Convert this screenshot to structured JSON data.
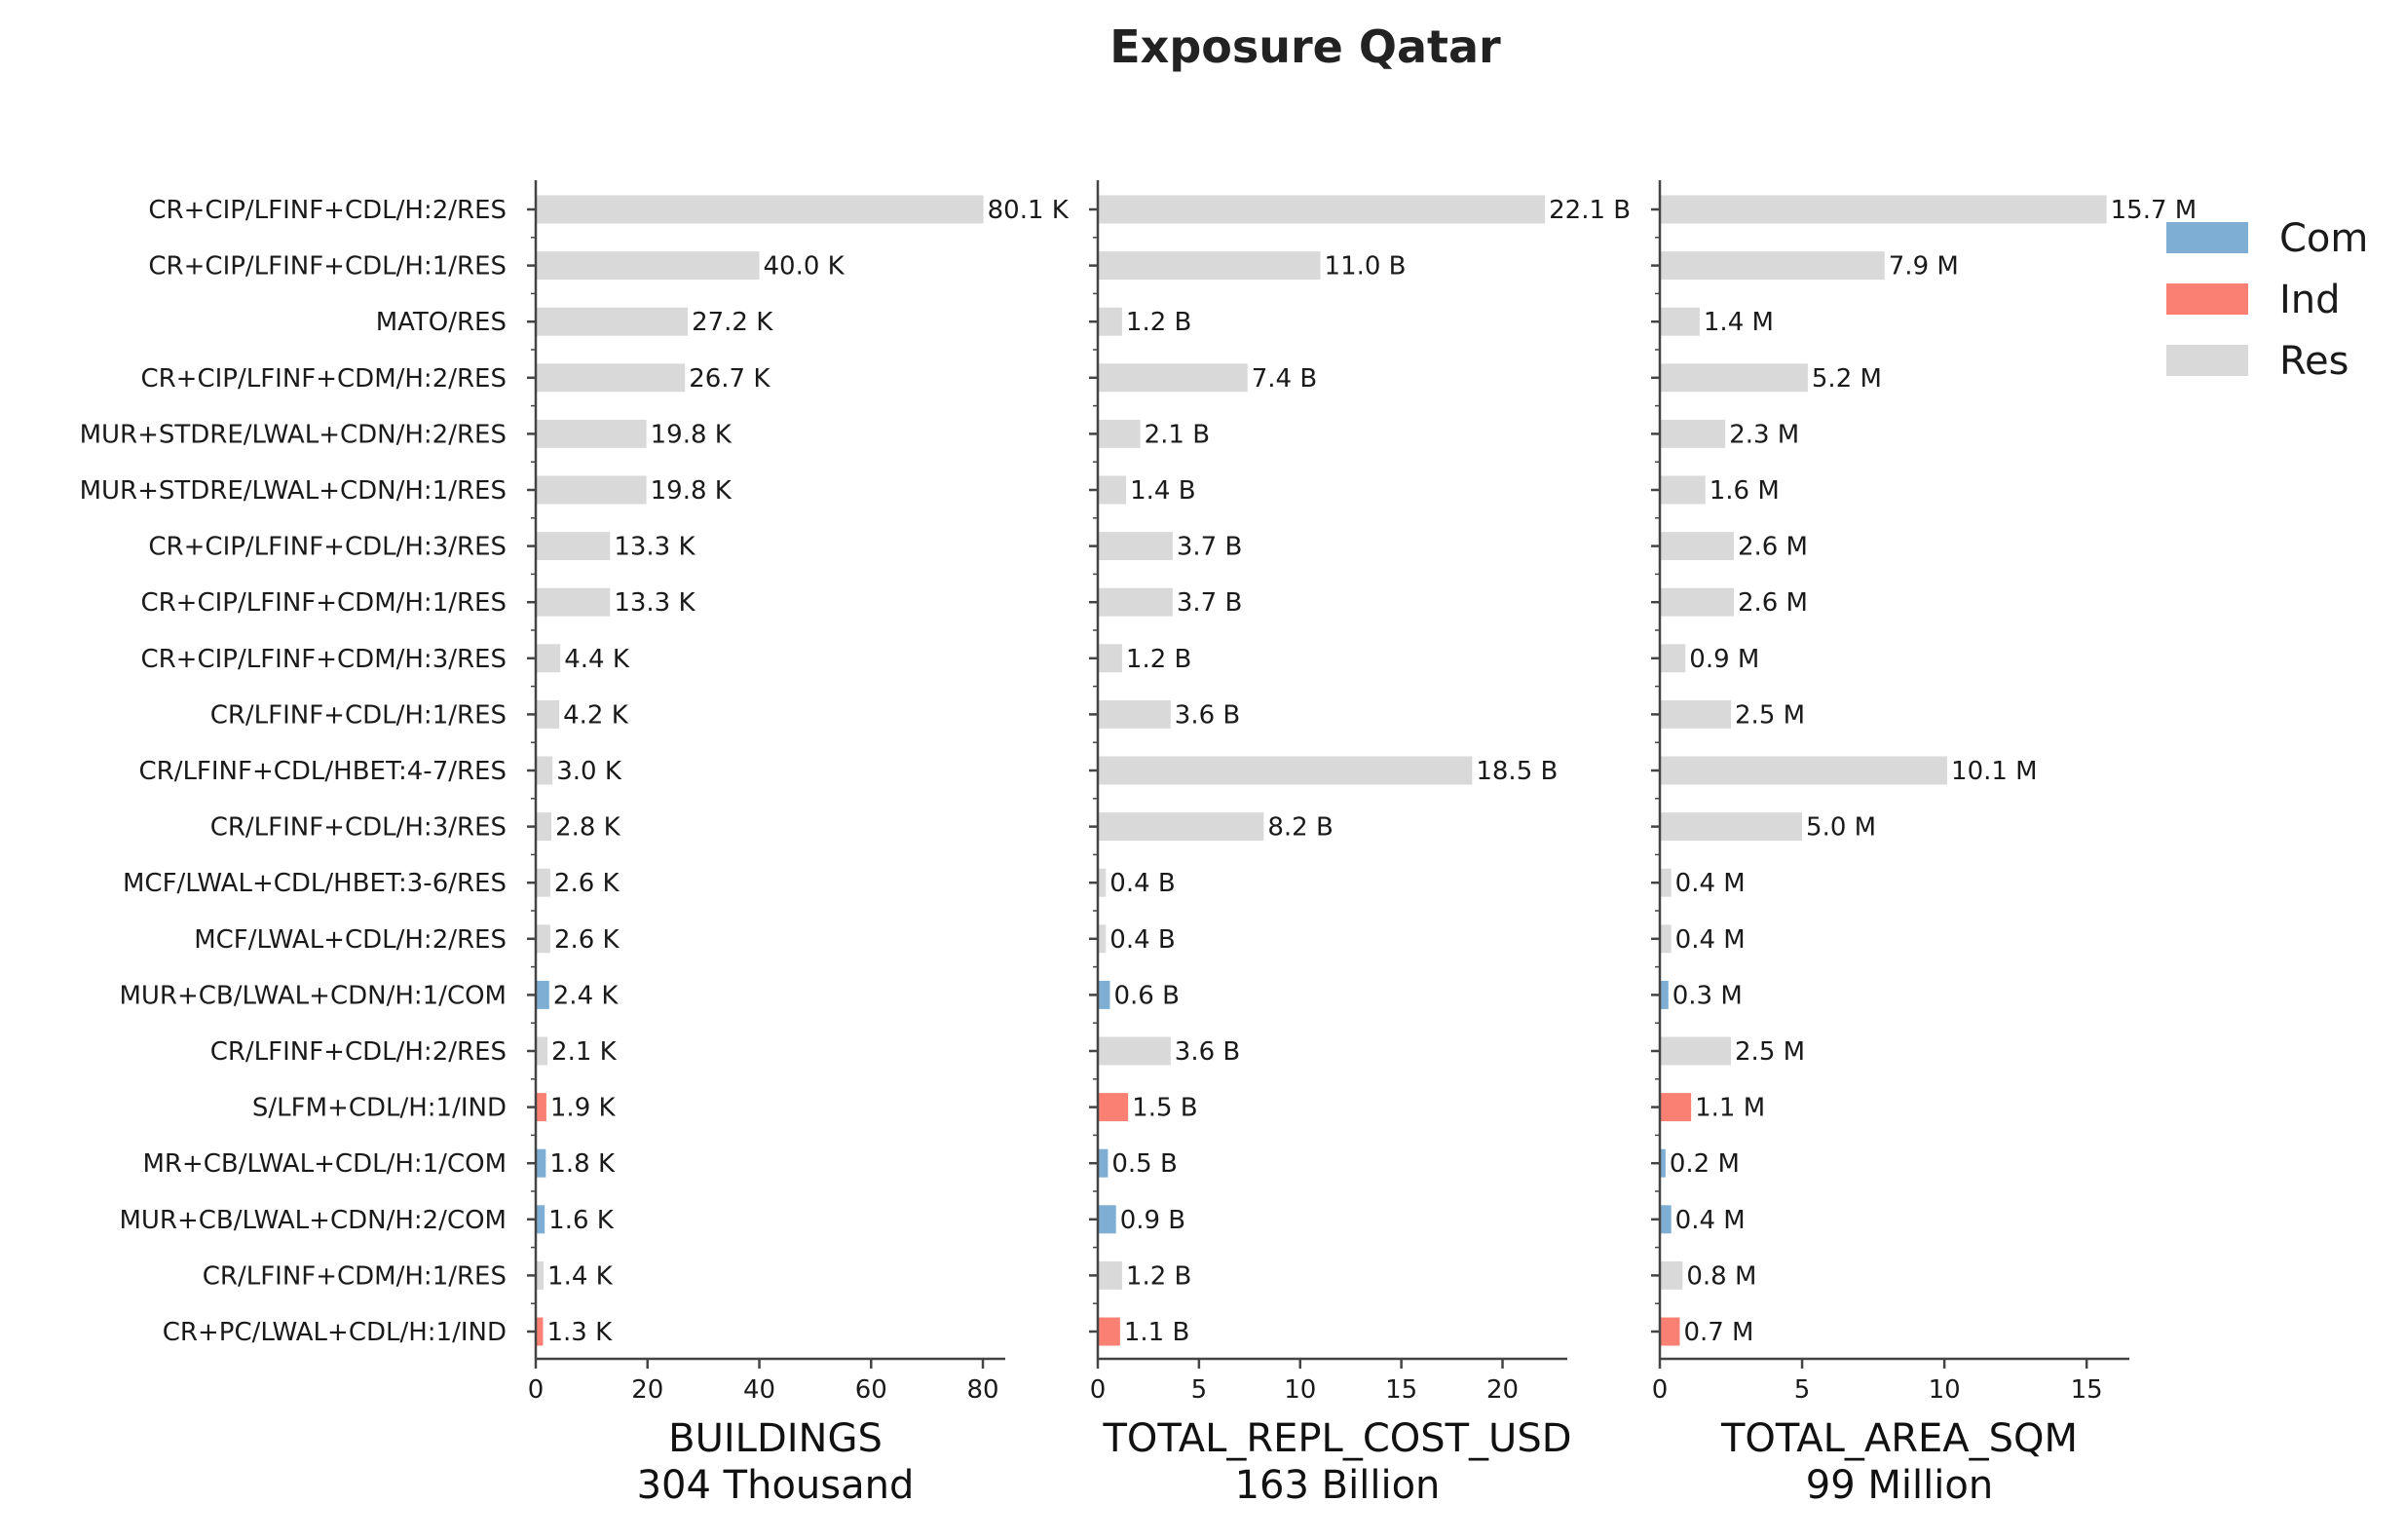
{
  "chart_data": {
    "type": "bar",
    "orientation": "horizontal",
    "title": "Exposure Qatar",
    "categories": [
      "CR+CIP/LFINF+CDL/H:2/RES",
      "CR+CIP/LFINF+CDL/H:1/RES",
      "MATO/RES",
      "CR+CIP/LFINF+CDM/H:2/RES",
      "MUR+STDRE/LWAL+CDN/H:2/RES",
      "MUR+STDRE/LWAL+CDN/H:1/RES",
      "CR+CIP/LFINF+CDL/H:3/RES",
      "CR+CIP/LFINF+CDM/H:1/RES",
      "CR+CIP/LFINF+CDM/H:3/RES",
      "CR/LFINF+CDL/H:1/RES",
      "CR/LFINF+CDL/HBET:4-7/RES",
      "CR/LFINF+CDL/H:3/RES",
      "MCF/LWAL+CDL/HBET:3-6/RES",
      "MCF/LWAL+CDL/H:2/RES",
      "MUR+CB/LWAL+CDN/H:1/COM",
      "CR/LFINF+CDL/H:2/RES",
      "S/LFM+CDL/H:1/IND",
      "MR+CB/LWAL+CDL/H:1/COM",
      "MUR+CB/LWAL+CDN/H:2/COM",
      "CR/LFINF+CDM/H:1/RES",
      "CR+PC/LWAL+CDL/H:1/IND"
    ],
    "occupancy": [
      "Res",
      "Res",
      "Res",
      "Res",
      "Res",
      "Res",
      "Res",
      "Res",
      "Res",
      "Res",
      "Res",
      "Res",
      "Res",
      "Res",
      "Com",
      "Res",
      "Ind",
      "Com",
      "Com",
      "Res",
      "Ind"
    ],
    "legend": {
      "placement": "top-right",
      "entries": [
        {
          "name": "Com",
          "color": "#7eaed3"
        },
        {
          "name": "Ind",
          "color": "#f98072"
        },
        {
          "name": "Res",
          "color": "#d9d9d9"
        }
      ]
    },
    "panels": [
      {
        "xlabel": "BUILDINGS",
        "subtitle": "304 Thousand",
        "xlim": [
          0,
          84
        ],
        "xticks": [
          0,
          20,
          40,
          60,
          80
        ],
        "values": [
          80.1,
          40.0,
          27.2,
          26.7,
          19.8,
          19.8,
          13.3,
          13.3,
          4.4,
          4.2,
          3.0,
          2.8,
          2.6,
          2.6,
          2.4,
          2.1,
          1.9,
          1.8,
          1.6,
          1.4,
          1.3
        ],
        "data_labels": [
          "80.1 K",
          "40.0 K",
          "27.2 K",
          "26.7 K",
          "19.8 K",
          "19.8 K",
          "13.3 K",
          "13.3 K",
          "4.4 K",
          "4.2 K",
          "3.0 K",
          "2.8 K",
          "2.6 K",
          "2.6 K",
          "2.4 K",
          "2.1 K",
          "1.9 K",
          "1.8 K",
          "1.6 K",
          "1.4 K",
          "1.3 K"
        ]
      },
      {
        "xlabel": "TOTAL_REPL_COST_USD",
        "subtitle": "163 Billion",
        "xlim": [
          0,
          23.2
        ],
        "xticks": [
          0,
          5,
          10,
          15,
          20
        ],
        "values": [
          22.1,
          11.0,
          1.2,
          7.4,
          2.1,
          1.4,
          3.7,
          3.7,
          1.2,
          3.6,
          18.5,
          8.2,
          0.4,
          0.4,
          0.6,
          3.6,
          1.5,
          0.5,
          0.9,
          1.2,
          1.1
        ],
        "data_labels": [
          "22.1 B",
          "11.0 B",
          "1.2 B",
          "7.4 B",
          "2.1 B",
          "1.4 B",
          "3.7 B",
          "3.7 B",
          "1.2 B",
          "3.6 B",
          "18.5 B",
          "8.2 B",
          "0.4 B",
          "0.4 B",
          "0.6 B",
          "3.6 B",
          "1.5 B",
          "0.5 B",
          "0.9 B",
          "1.2 B",
          "1.1 B"
        ]
      },
      {
        "xlabel": "TOTAL_AREA_SQM",
        "subtitle": "99 Million",
        "xlim": [
          0,
          16.5
        ],
        "xticks": [
          0,
          5,
          10,
          15
        ],
        "values": [
          15.7,
          7.9,
          1.4,
          5.2,
          2.3,
          1.6,
          2.6,
          2.6,
          0.9,
          2.5,
          10.1,
          5.0,
          0.4,
          0.4,
          0.3,
          2.5,
          1.1,
          0.2,
          0.4,
          0.8,
          0.7
        ],
        "data_labels": [
          "15.7 M",
          "7.9 M",
          "1.4 M",
          "5.2 M",
          "2.3 M",
          "1.6 M",
          "2.6 M",
          "2.6 M",
          "0.9 M",
          "2.5 M",
          "10.1 M",
          "5.0 M",
          "0.4 M",
          "0.4 M",
          "0.3 M",
          "2.5 M",
          "1.1 M",
          "0.2 M",
          "0.4 M",
          "0.8 M",
          "0.7 M"
        ]
      }
    ]
  }
}
